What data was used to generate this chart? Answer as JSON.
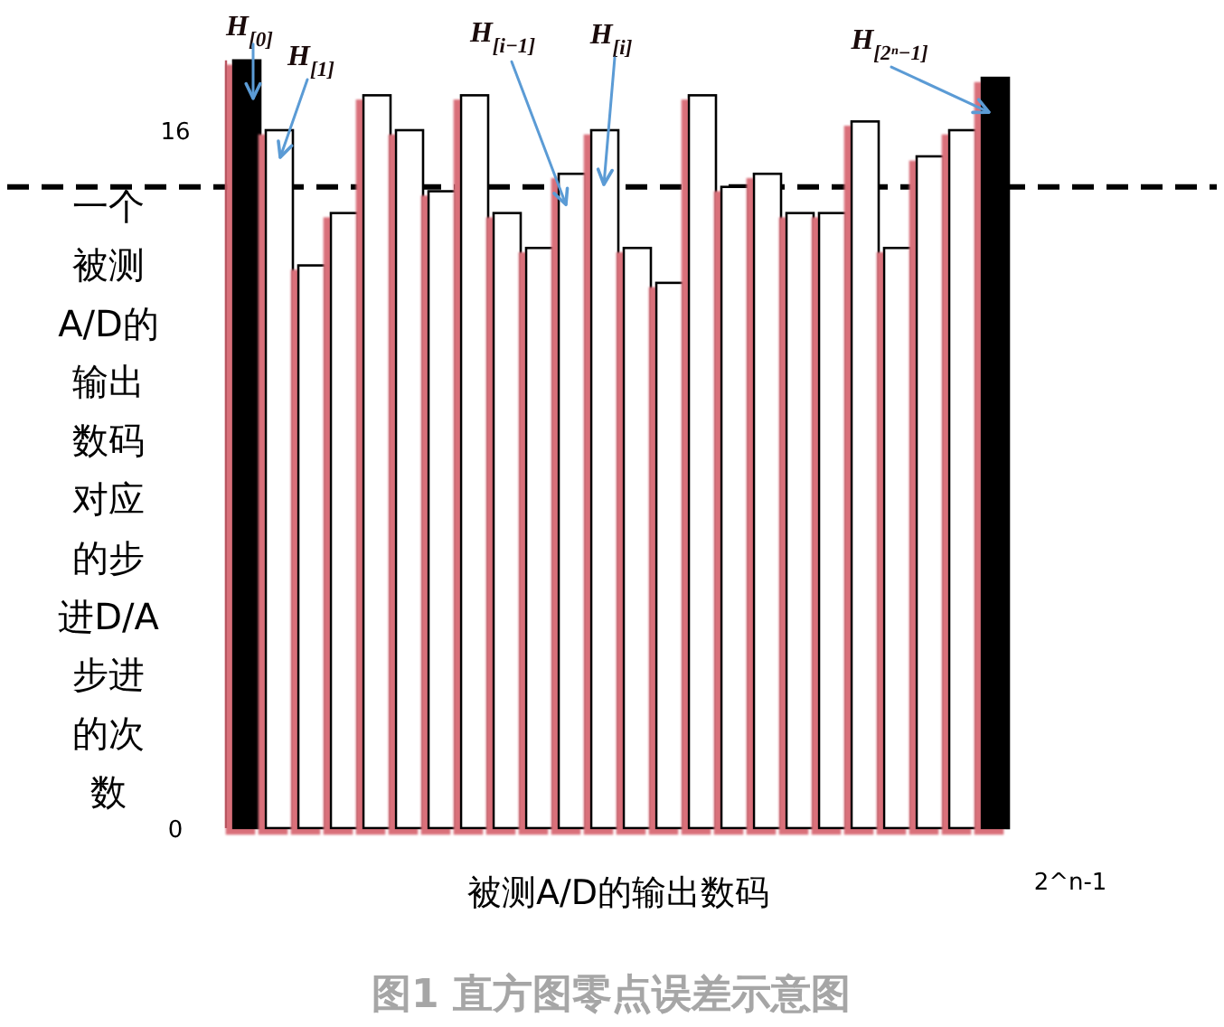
{
  "chart_data": {
    "type": "bar",
    "categories": [
      null,
      null,
      null,
      null,
      null,
      null,
      null,
      null,
      null,
      null,
      null,
      null,
      null,
      null,
      null,
      null,
      null,
      null,
      null,
      null,
      null,
      null,
      null,
      null
    ],
    "values": [
      17.6,
      16.0,
      12.9,
      14.1,
      16.8,
      16.0,
      14.6,
      16.8,
      14.1,
      13.3,
      15.0,
      16.0,
      13.3,
      12.5,
      16.8,
      14.7,
      15.0,
      14.1,
      14.1,
      16.2,
      13.3,
      15.4,
      16.0,
      17.2
    ],
    "colors": [
      "#000000",
      "#ffffff",
      "#ffffff",
      "#ffffff",
      "#ffffff",
      "#ffffff",
      "#ffffff",
      "#ffffff",
      "#ffffff",
      "#ffffff",
      "#ffffff",
      "#ffffff",
      "#ffffff",
      "#ffffff",
      "#ffffff",
      "#ffffff",
      "#ffffff",
      "#ffffff",
      "#ffffff",
      "#ffffff",
      "#ffffff",
      "#ffffff",
      "#ffffff",
      "#000000"
    ],
    "ylim": [
      0,
      17.6
    ],
    "yticks": [
      0,
      16
    ],
    "xlabel": "被测A/D的输出数码",
    "ylabel": "一个被测A/D的输出数码对应的步进D/A步进的次数",
    "ref_lines": [
      {
        "axis": "y",
        "value": 14.7,
        "color": "#000000",
        "line_style": "dashed"
      }
    ],
    "annotations": [
      "H$_{[0]}$",
      "H$_{[1]}$",
      "H$_{[i−1]}$",
      "H$_{[i]}$",
      "H$_{[2ⁿ−1]}$",
      "2^n-1",
      "图1 直方图零点误差示意图"
    ]
  }
}
